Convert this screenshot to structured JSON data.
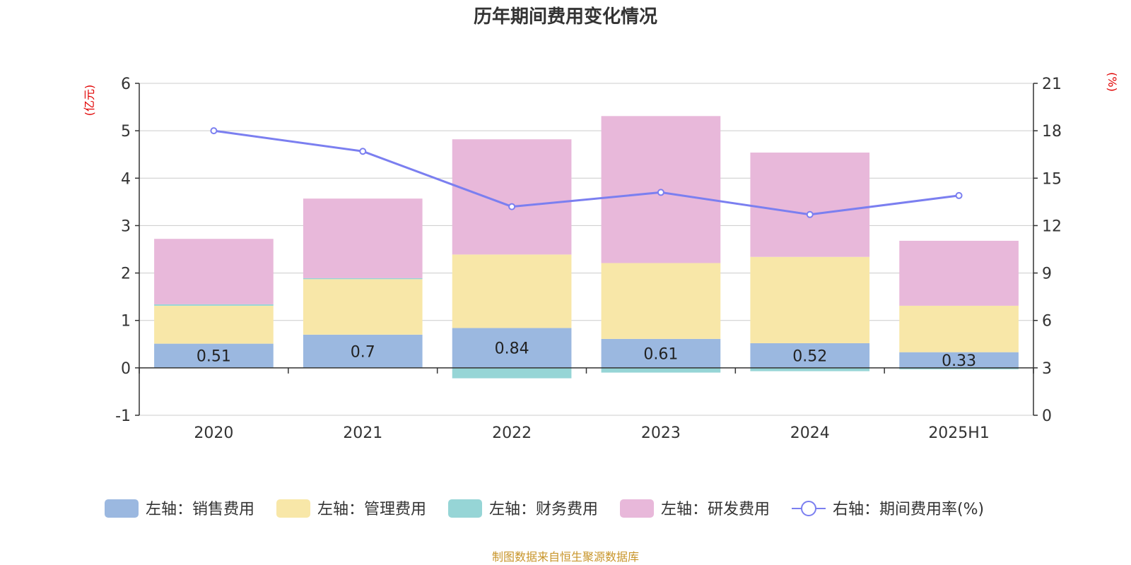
{
  "chart_data": {
    "type": "bar",
    "title": "历年期间费用变化情况",
    "left_unit": "(亿元)",
    "right_unit": "(%)",
    "categories": [
      "2020",
      "2021",
      "2022",
      "2023",
      "2024",
      "2025H1"
    ],
    "left_axis": {
      "ylim": [
        -1,
        6
      ],
      "ticks": [
        -1,
        0,
        1,
        2,
        3,
        4,
        5,
        6
      ]
    },
    "right_axis": {
      "ylim": [
        0,
        21
      ],
      "ticks": [
        0,
        3,
        6,
        9,
        12,
        15,
        18,
        21
      ]
    },
    "series": [
      {
        "name": "左轴：销售费用",
        "axis": "left",
        "color": "#9bb8e0",
        "values": [
          0.51,
          0.7,
          0.84,
          0.61,
          0.52,
          0.33
        ],
        "show_labels": true
      },
      {
        "name": "左轴：管理费用",
        "axis": "left",
        "color": "#f8e7a8",
        "values": [
          0.8,
          1.17,
          1.55,
          1.6,
          1.82,
          0.98
        ]
      },
      {
        "name": "左轴：财务费用",
        "axis": "left",
        "color": "#96d5d6",
        "values": [
          0.03,
          0.02,
          -0.22,
          -0.1,
          -0.07,
          -0.03
        ]
      },
      {
        "name": "左轴：研发费用",
        "axis": "left",
        "color": "#e8b8da",
        "values": [
          1.38,
          1.68,
          2.43,
          3.1,
          2.2,
          1.37
        ]
      }
    ],
    "line_series": {
      "name": "右轴：期间费用率(%)",
      "axis": "right",
      "color": "#7b7ff0",
      "values": [
        18.0,
        16.7,
        13.2,
        14.1,
        12.7,
        13.9
      ]
    },
    "grid": true,
    "legend_position": "bottom",
    "source": "制图数据来自恒生聚源数据库"
  }
}
